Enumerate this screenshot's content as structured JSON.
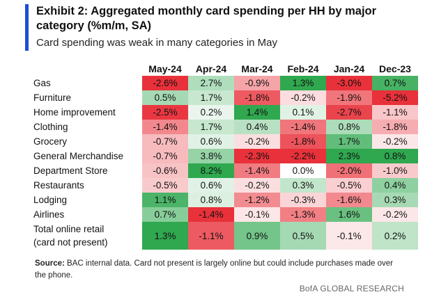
{
  "title": "Exhibit 2: Aggregated monthly card spending per HH by major category (%m/m, SA)",
  "subtitle": "Card spending was weak in many categories in May",
  "source_label": "Source:",
  "source_text": "BAC internal data. Card not present is largely online but could include purchases made over the phone.",
  "brand": "BofA GLOBAL RESEARCH",
  "colors": {
    "positive": "#2fa84f",
    "negative": "#e8313a"
  },
  "chart_data": {
    "type": "heatmap",
    "title": "Exhibit 2: Aggregated monthly card spending per HH by major category (%m/m, SA)",
    "subtitle": "Card spending was weak in many categories in May",
    "columns": [
      "May-24",
      "Apr-24",
      "Mar-24",
      "Feb-24",
      "Jan-24",
      "Dec-23"
    ],
    "rows": [
      {
        "label": "Gas",
        "values": [
          -2.6,
          2.7,
          -0.9,
          1.3,
          -3.0,
          0.7
        ]
      },
      {
        "label": "Furniture",
        "values": [
          0.5,
          1.7,
          -1.8,
          -0.2,
          -1.9,
          -5.2
        ]
      },
      {
        "label": "Home improvement",
        "values": [
          -2.5,
          0.2,
          1.4,
          0.1,
          -2.7,
          -1.1
        ]
      },
      {
        "label": "Clothing",
        "values": [
          -1.4,
          1.7,
          0.4,
          -1.4,
          0.8,
          -1.8
        ]
      },
      {
        "label": "Grocery",
        "values": [
          -0.7,
          0.6,
          -0.2,
          -1.8,
          1.7,
          -0.2
        ]
      },
      {
        "label": "General Merchandise",
        "values": [
          -0.7,
          3.8,
          -2.3,
          -2.2,
          2.3,
          0.8
        ]
      },
      {
        "label": "Department Store",
        "values": [
          -0.6,
          8.2,
          -1.4,
          0.0,
          -2.0,
          -1.0
        ]
      },
      {
        "label": "Restaurants",
        "values": [
          -0.5,
          0.6,
          -0.2,
          0.3,
          -0.5,
          0.4
        ]
      },
      {
        "label": "Lodging",
        "values": [
          1.1,
          0.8,
          -1.2,
          -0.3,
          -1.6,
          0.3
        ]
      },
      {
        "label": "Airlines",
        "values": [
          0.7,
          -1.4,
          -0.1,
          -1.3,
          1.6,
          -0.2
        ]
      },
      {
        "label": "Total online retail",
        "label_line2": "(card not present)",
        "values": [
          1.3,
          -1.1,
          0.9,
          0.5,
          -0.1,
          0.2
        ]
      }
    ],
    "value_suffix": "%"
  }
}
